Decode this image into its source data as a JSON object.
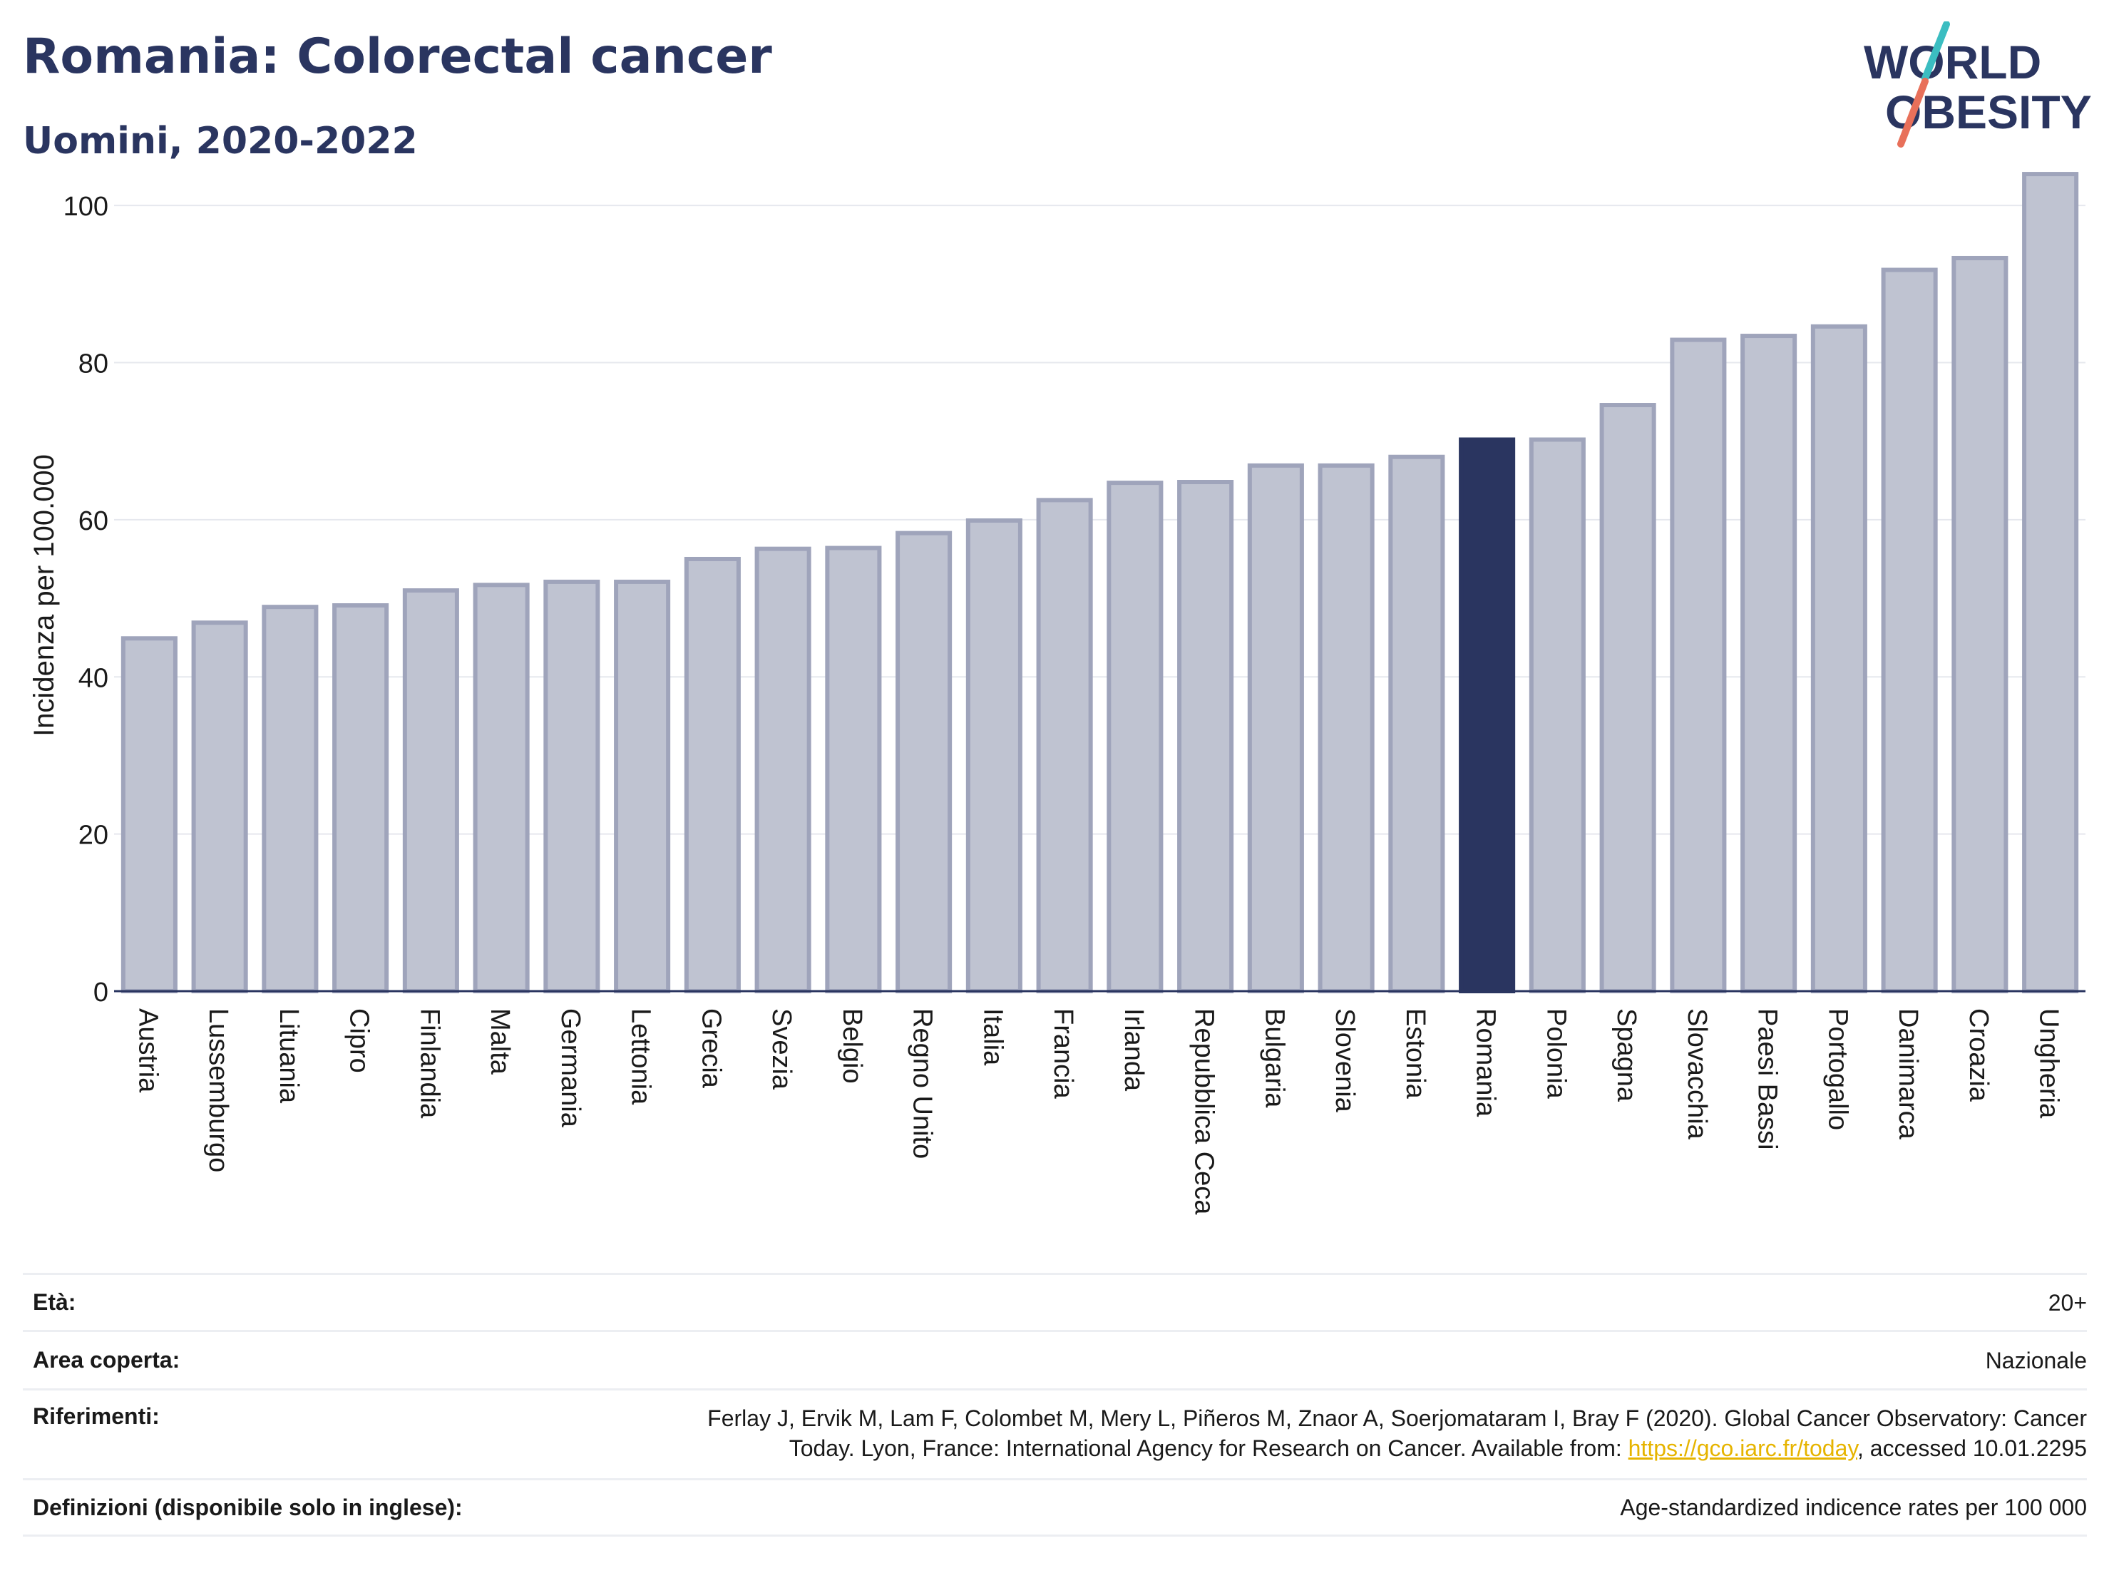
{
  "header": {
    "title": "Romania: Colorectal cancer",
    "subtitle": "Uomini, 2020-2022"
  },
  "logo": {
    "line1": "WORLD",
    "line2": "OBESITY",
    "accent_teal": "#3bbdc1",
    "accent_coral": "#e8705a",
    "color": "#2a3560"
  },
  "chart_data": {
    "type": "bar",
    "title": "Romania: Colorectal cancer",
    "subtitle": "Uomini, 2020-2022",
    "ylabel": "Incidenza per 100.000",
    "xlabel": "",
    "ylim": [
      0,
      108
    ],
    "yticks": [
      0,
      20,
      40,
      60,
      80,
      100
    ],
    "grid": true,
    "highlight": "Romania",
    "colors": {
      "bar": "#bfc3d1",
      "bar_edge": "#9fa4bb",
      "highlight": "#2a3560"
    },
    "categories": [
      "Austria",
      "Lussemburgo",
      "Lituania",
      "Cipro",
      "Finlandia",
      "Malta",
      "Germania",
      "Lettonia",
      "Grecia",
      "Svezia",
      "Belgio",
      "Regno Unito",
      "Italia",
      "Francia",
      "Irlanda",
      "Repubblica Ceca",
      "Bulgaria",
      "Slovenia",
      "Estonia",
      "Romania",
      "Polonia",
      "Spagna",
      "Slovacchia",
      "Paesi Bassi",
      "Portogallo",
      "Danimarca",
      "Croazia",
      "Ungheria"
    ],
    "values": [
      44.9,
      46.9,
      48.9,
      49.1,
      51.0,
      51.7,
      52.1,
      52.1,
      55.0,
      56.3,
      56.4,
      58.3,
      59.9,
      62.5,
      64.7,
      64.8,
      66.9,
      66.9,
      68.0,
      70.2,
      70.2,
      74.6,
      82.9,
      83.4,
      84.6,
      91.8,
      93.3,
      104.0
    ]
  },
  "info": {
    "rows": [
      {
        "label": "Età:",
        "value": "20+"
      },
      {
        "label": "Area coperta:",
        "value": "Nazionale"
      },
      {
        "label": "Riferimenti:",
        "value_line1": "Ferlay J, Ervik M, Lam F, Colombet M, Mery L, Piñeros M, Znaor A, Soerjomataram I, Bray F (2020). Global Cancer Observatory: Cancer",
        "value_line2_pre": "Today. Lyon, France: International Agency for Research on Cancer. Available from: ",
        "link": "https://gco.iarc.fr/today",
        "value_line2_post": ", accessed 10.01.2295"
      },
      {
        "label": "Definizioni (disponibile solo in inglese):",
        "value": "Age-standardized indicence rates per 100 000"
      }
    ]
  }
}
